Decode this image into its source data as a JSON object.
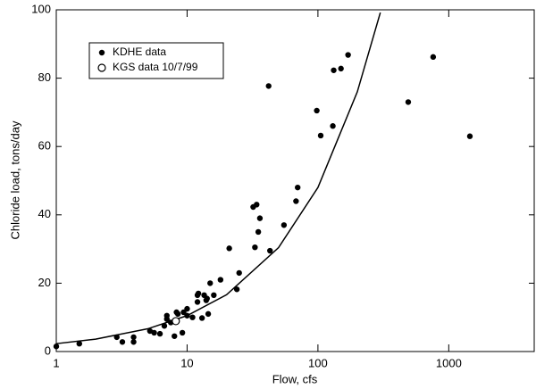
{
  "chart_data": {
    "type": "scatter",
    "x_label": "Flow, cfs",
    "y_label": "Chloride load, tons/day",
    "xlim": [
      1,
      4500
    ],
    "x_log": true,
    "xticks": [
      1,
      10,
      100,
      1000
    ],
    "ylim": [
      0,
      100
    ],
    "yticks": [
      0,
      20,
      40,
      60,
      80,
      100
    ],
    "grid": false,
    "legend": "upper left",
    "series": [
      {
        "name": "KDHE data",
        "color": "#000000",
        "marker": "filled",
        "x": [
          1,
          1.5,
          2.9,
          3.2,
          3.9,
          3.9,
          5.2,
          5.6,
          6.2,
          6.7,
          7,
          7,
          7.5,
          8,
          8.3,
          8.5,
          9.2,
          9.4,
          10,
          10,
          11,
          12,
          12,
          12.2,
          13,
          13.5,
          14,
          14.2,
          14.5,
          15,
          16,
          18,
          21,
          24,
          25,
          32,
          33,
          34,
          35,
          36,
          42,
          43,
          55,
          68,
          70,
          98,
          105,
          130,
          132,
          150,
          170,
          490,
          760,
          1450
        ],
        "values": [
          1.5,
          2.3,
          4.2,
          2.8,
          4.2,
          2.8,
          6,
          5.5,
          5.2,
          7.5,
          9.5,
          10.5,
          8.5,
          4.5,
          11.5,
          11,
          5.5,
          11.5,
          12.5,
          10.5,
          10,
          14.5,
          16.5,
          17,
          9.8,
          16.5,
          15,
          15.5,
          11,
          20,
          16.5,
          21,
          30.2,
          18.2,
          23,
          42.3,
          30.5,
          43,
          35,
          39,
          77.7,
          29.5,
          37,
          44,
          48,
          70.5,
          63.2,
          66,
          82.3,
          82.8,
          86.8,
          73,
          86.2,
          63
        ]
      },
      {
        "name": "KGS data 10/7/99",
        "color": "#000000",
        "marker": "open",
        "x": [
          8.2
        ],
        "values": [
          8.9
        ]
      }
    ],
    "fit": {
      "color": "#000000",
      "x": [
        1,
        2,
        5,
        10,
        20,
        50,
        100,
        200,
        300
      ],
      "y": [
        2.3,
        3.63,
        6.65,
        10.51,
        16.6,
        30.4,
        48.0,
        76,
        99.2
      ]
    }
  }
}
